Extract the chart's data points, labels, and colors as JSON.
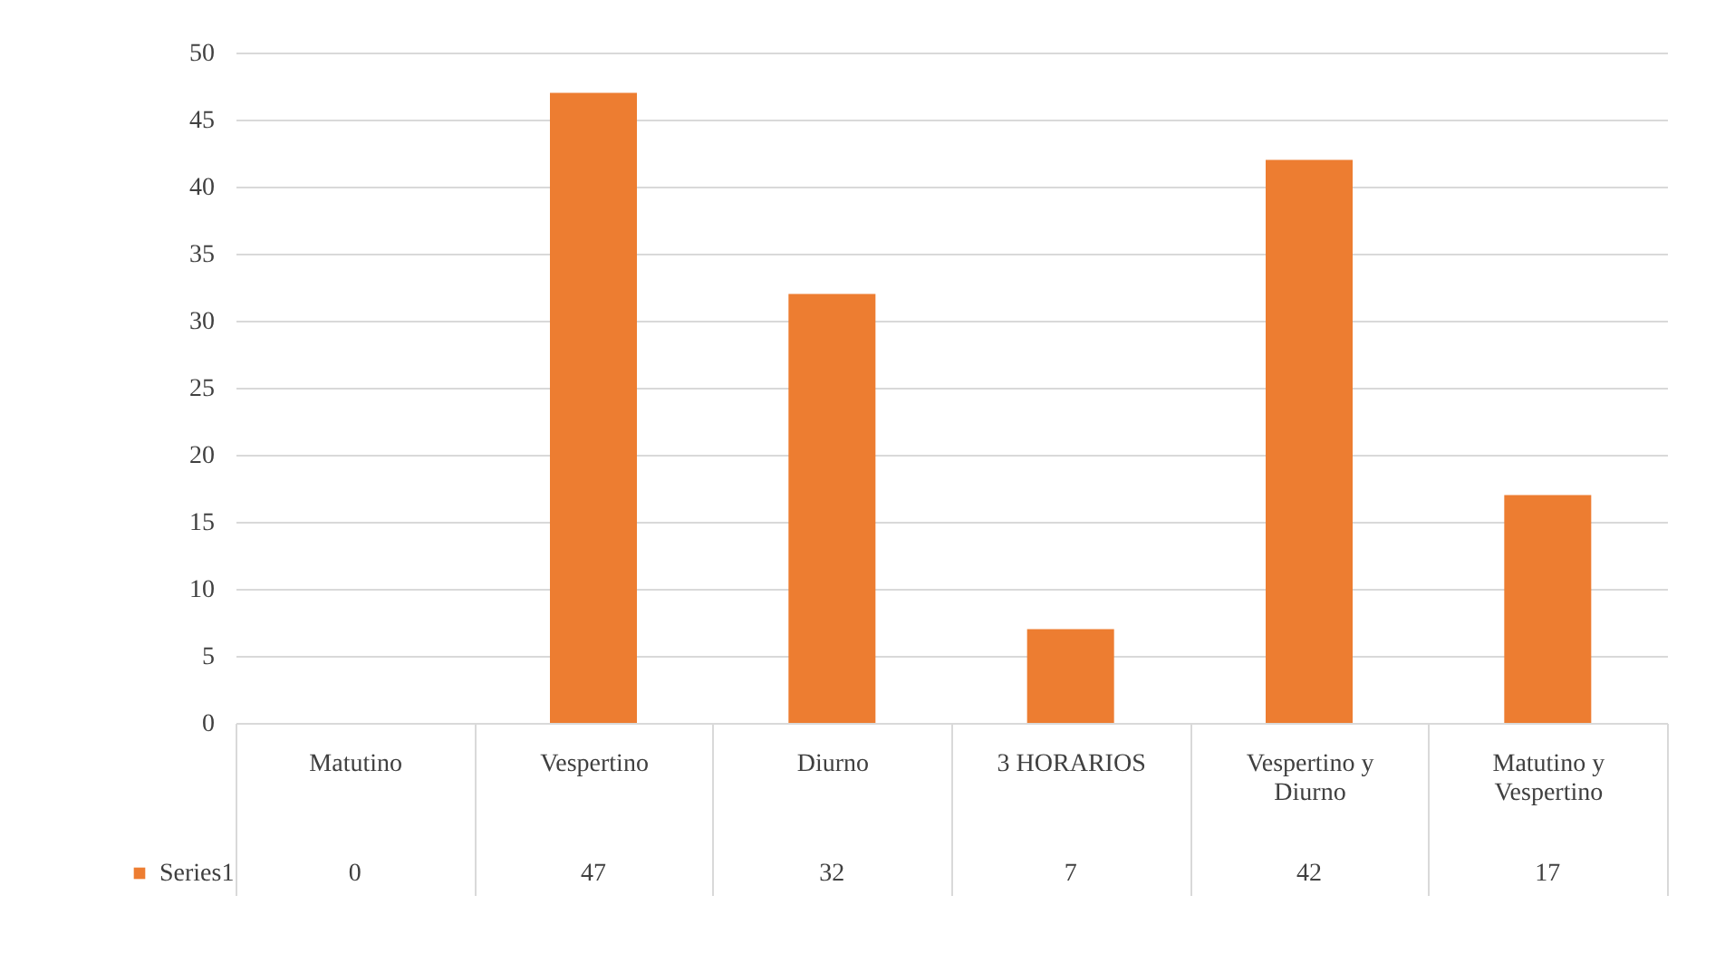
{
  "chart_data": {
    "type": "bar",
    "categories": [
      "Matutino",
      "Vespertino",
      "Diurno",
      "3 HORARIOS",
      "Vespertino y Diurno",
      "Matutino y Vespertino"
    ],
    "series": [
      {
        "name": "Series1",
        "color": "#ed7d31",
        "values": [
          0,
          47,
          32,
          7,
          42,
          17
        ]
      }
    ],
    "ylim": [
      0,
      50
    ],
    "yticks": [
      0,
      5,
      10,
      15,
      20,
      25,
      30,
      35,
      40,
      45,
      50
    ],
    "grid": "y",
    "data_labels": true,
    "legend": "bottom left"
  }
}
